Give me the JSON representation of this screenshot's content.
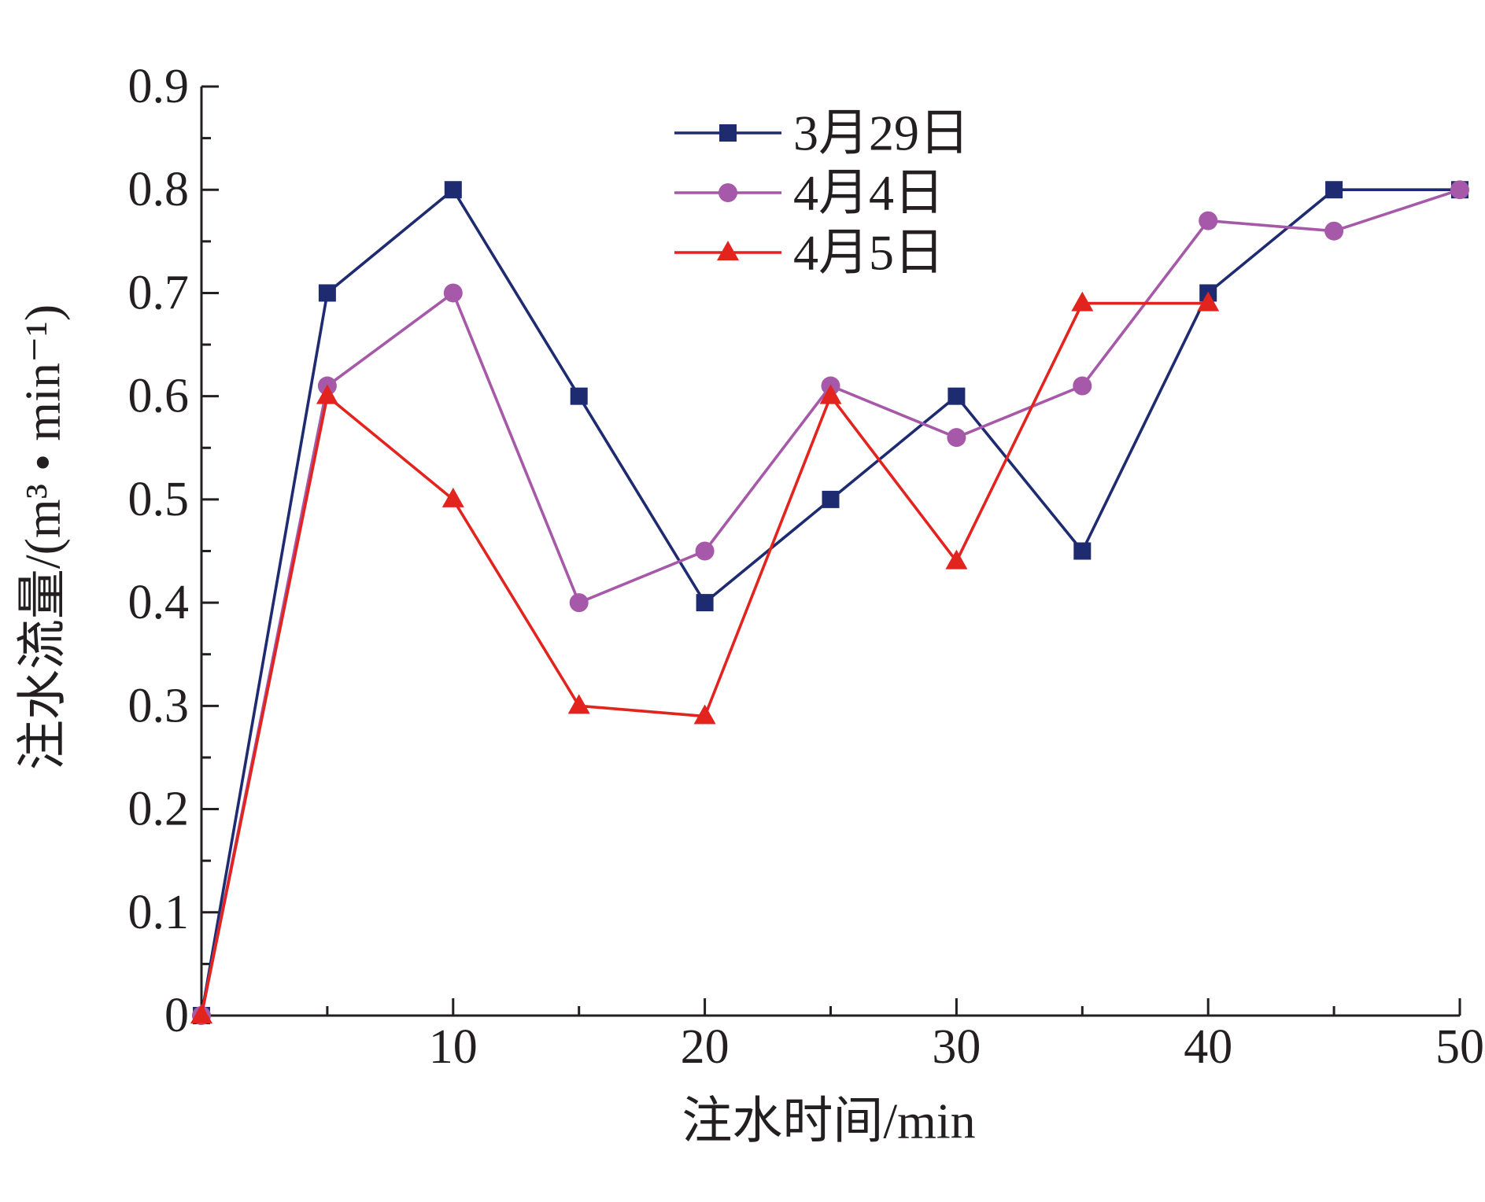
{
  "chart_data": {
    "type": "line",
    "title": "",
    "xlabel": "注水时间/min",
    "ylabel": "注水流量/(m³ • min⁻¹)",
    "xlim": [
      0,
      50
    ],
    "ylim": [
      0,
      0.9
    ],
    "xticks": [
      10,
      20,
      30,
      40,
      50
    ],
    "yticks": [
      0,
      0.1,
      0.2,
      0.3,
      0.4,
      0.5,
      0.6,
      0.7,
      0.8,
      0.9
    ],
    "grid": false,
    "legend": "top-center",
    "x": [
      0,
      5,
      10,
      15,
      20,
      25,
      30,
      35,
      40,
      45,
      50
    ],
    "series": [
      {
        "name": "3月29日",
        "color": "#1e2b70",
        "marker": "square",
        "values": [
          0,
          0.7,
          0.8,
          0.6,
          0.4,
          0.5,
          0.6,
          0.45,
          0.7,
          0.8,
          0.8
        ]
      },
      {
        "name": "4月4日",
        "color": "#a559a8",
        "marker": "circle",
        "values": [
          0,
          0.61,
          0.7,
          0.4,
          0.45,
          0.61,
          0.56,
          0.61,
          0.77,
          0.76,
          0.8
        ]
      },
      {
        "name": "4月5日",
        "color": "#e2231e",
        "marker": "triangle",
        "values": [
          0,
          0.6,
          0.5,
          0.3,
          0.29,
          0.6,
          0.44,
          0.69,
          0.69,
          null,
          null
        ]
      }
    ]
  }
}
